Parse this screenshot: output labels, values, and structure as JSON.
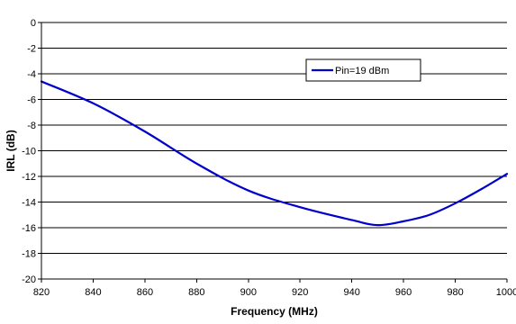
{
  "chart_data": {
    "type": "line",
    "title": "",
    "xlabel": "Frequency (MHz)",
    "ylabel": "IRL (dB)",
    "xlim": [
      820,
      1000
    ],
    "ylim": [
      -20,
      0
    ],
    "x_ticks": [
      820,
      840,
      860,
      880,
      900,
      920,
      940,
      960,
      980,
      1000
    ],
    "y_ticks": [
      0,
      -2,
      -4,
      -6,
      -8,
      -10,
      -12,
      -14,
      -16,
      -18,
      -20
    ],
    "grid": {
      "horizontal": true,
      "vertical": false
    },
    "legend_position": "top-right",
    "series": [
      {
        "name": "Pin=19 dBm",
        "color": "#0000CC",
        "x": [
          820,
          840,
          860,
          880,
          900,
          920,
          940,
          950,
          960,
          970,
          980,
          990,
          1000
        ],
        "y": [
          -4.6,
          -6.3,
          -8.5,
          -11.0,
          -13.1,
          -14.4,
          -15.4,
          -15.8,
          -15.5,
          -15.0,
          -14.1,
          -13.0,
          -11.8
        ]
      }
    ]
  }
}
